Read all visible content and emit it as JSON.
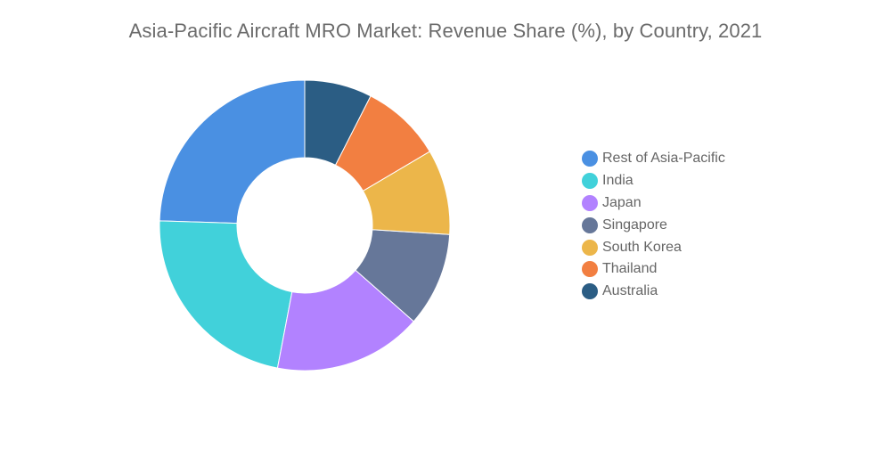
{
  "chart_data": {
    "type": "pie",
    "variant": "donut",
    "title": "Asia-Pacific Aircraft MRO Market: Revenue Share (%), by Country, 2021",
    "categories": [
      "Rest of Asia-Pacific",
      "India",
      "Japan",
      "Singapore",
      "South Korea",
      "Thailand",
      "Australia"
    ],
    "values": [
      24.5,
      22.5,
      16.5,
      10.5,
      9.5,
      9.0,
      7.5
    ],
    "colors": [
      "#4a90e2",
      "#41d1da",
      "#b282ff",
      "#667799",
      "#ecb64a",
      "#f27f41",
      "#2b5d84"
    ],
    "legend_position": "right"
  }
}
